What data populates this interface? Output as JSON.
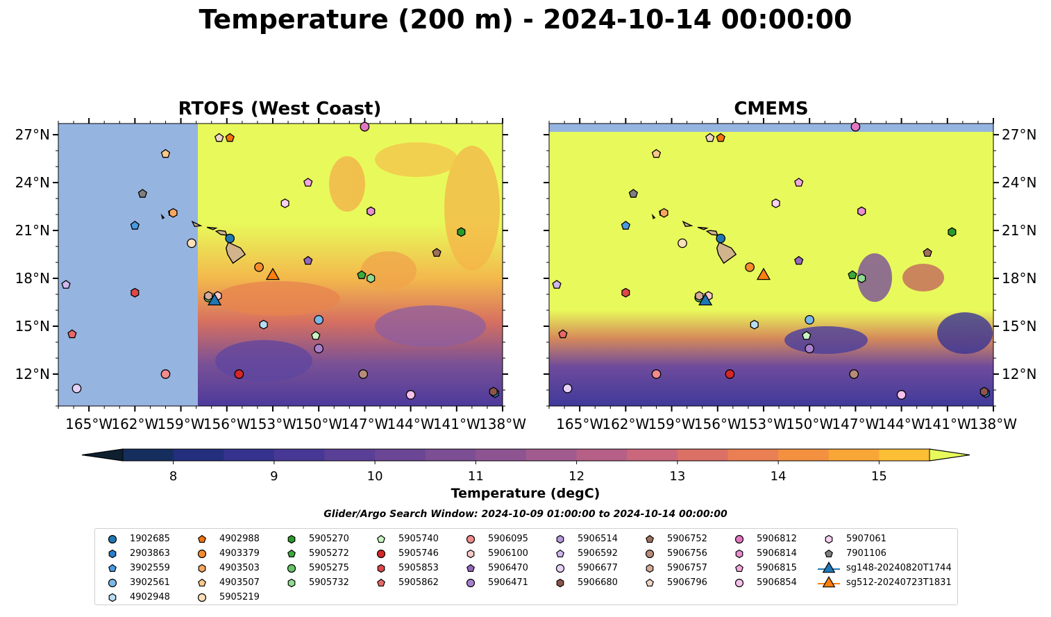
{
  "title": "Temperature (200 m) - 2024-10-14 00:00:00",
  "maps": [
    {
      "id": "rtofs",
      "title": "RTOFS (West Coast)",
      "land_mask_extent_lon": [
        -167,
        -158
      ]
    },
    {
      "id": "cmems",
      "title": "CMEMS"
    }
  ],
  "map_extent": {
    "lon": [
      -167,
      -138
    ],
    "lat": [
      10,
      27.7
    ]
  },
  "lon_ticks": [
    "165°W",
    "162°W",
    "159°W",
    "156°W",
    "153°W",
    "150°W",
    "147°W",
    "144°W",
    "141°W",
    "138°W"
  ],
  "lon_tick_values": [
    -165,
    -162,
    -159,
    -156,
    -153,
    -150,
    -147,
    -144,
    -141,
    -138
  ],
  "lat_ticks": [
    "27°N",
    "24°N",
    "21°N",
    "18°N",
    "15°N",
    "12°N"
  ],
  "lat_tick_values": [
    27,
    24,
    21,
    18,
    15,
    12
  ],
  "colorbar": {
    "title": "Temperature (degC)",
    "range": [
      7.5,
      15.5
    ],
    "step": 0.5,
    "ticks": [
      "8",
      "9",
      "10",
      "11",
      "12",
      "13",
      "14",
      "15"
    ],
    "tick_values": [
      8,
      9,
      10,
      11,
      12,
      13,
      14,
      15
    ],
    "extend": "both",
    "colormap": "thermal",
    "under_color": "#0e2030",
    "over_color": "#e8fa5b"
  },
  "search_window": "Glider/Argo Search Window: 2024-10-09 01:00:00 to 2024-10-14 00:00:00",
  "colors": {
    "land": "#d2b48c",
    "masked_ocean": "#96b4e0",
    "glider_sg148": "#1f77b4",
    "glider_sg512": "#ff7f0e"
  },
  "legend": [
    [
      {
        "label": "1902685",
        "marker": "circle",
        "color": "#1f77b4"
      },
      {
        "label": "2903863",
        "marker": "hexagon",
        "color": "#2d7ec8"
      },
      {
        "label": "3902559",
        "marker": "pentagon",
        "color": "#4a9ae0"
      },
      {
        "label": "3902561",
        "marker": "circle",
        "color": "#7ab8e8"
      },
      {
        "label": "4902948",
        "marker": "hexagon",
        "color": "#b8dcf4"
      }
    ],
    [
      {
        "label": "4902988",
        "marker": "pentagon",
        "color": "#f5730e"
      },
      {
        "label": "4903379",
        "marker": "circle",
        "color": "#f58c2e"
      },
      {
        "label": "4903503",
        "marker": "hexagon",
        "color": "#f7a860"
      },
      {
        "label": "4903507",
        "marker": "pentagon",
        "color": "#fbc88a"
      },
      {
        "label": "5905219",
        "marker": "circle",
        "color": "#fde0b8"
      }
    ],
    [
      {
        "label": "5905270",
        "marker": "hexagon",
        "color": "#2a9a2a"
      },
      {
        "label": "5905272",
        "marker": "pentagon",
        "color": "#3aab3a"
      },
      {
        "label": "5905275",
        "marker": "circle",
        "color": "#66c466"
      },
      {
        "label": "5905732",
        "marker": "hexagon",
        "color": "#8fdc8f"
      },
      {
        "label": "",
        "marker": "none",
        "color": ""
      }
    ],
    [
      {
        "label": "5905740",
        "marker": "pentagon",
        "color": "#c8f5c0"
      },
      {
        "label": "5905746",
        "marker": "circle",
        "color": "#d62728"
      },
      {
        "label": "5905853",
        "marker": "hexagon",
        "color": "#e04848"
      },
      {
        "label": "5905862",
        "marker": "pentagon",
        "color": "#e86868"
      },
      {
        "label": "",
        "marker": "none",
        "color": ""
      }
    ],
    [
      {
        "label": "5906095",
        "marker": "circle",
        "color": "#f08c8c"
      },
      {
        "label": "5906100",
        "marker": "hexagon",
        "color": "#fac8c8"
      },
      {
        "label": "5906470",
        "marker": "pentagon",
        "color": "#9467bd"
      },
      {
        "label": "5906471",
        "marker": "circle",
        "color": "#a880cc"
      },
      {
        "label": "",
        "marker": "none",
        "color": ""
      }
    ],
    [
      {
        "label": "5906514",
        "marker": "hexagon",
        "color": "#b898dc"
      },
      {
        "label": "5906592",
        "marker": "pentagon",
        "color": "#d0b8ee"
      },
      {
        "label": "5906677",
        "marker": "circle",
        "color": "#e6d2f8"
      },
      {
        "label": "5906680",
        "marker": "hexagon",
        "color": "#8c564b"
      },
      {
        "label": "",
        "marker": "none",
        "color": ""
      }
    ],
    [
      {
        "label": "5906752",
        "marker": "pentagon",
        "color": "#a0705c"
      },
      {
        "label": "5906756",
        "marker": "circle",
        "color": "#b88c78"
      },
      {
        "label": "5906757",
        "marker": "hexagon",
        "color": "#d4ac98"
      },
      {
        "label": "5906796",
        "marker": "pentagon",
        "color": "#f0d4c4"
      },
      {
        "label": "",
        "marker": "none",
        "color": ""
      }
    ],
    [
      {
        "label": "5906812",
        "marker": "circle",
        "color": "#e377c2"
      },
      {
        "label": "5906814",
        "marker": "hexagon",
        "color": "#ea8ed0"
      },
      {
        "label": "5906815",
        "marker": "pentagon",
        "color": "#f2a8dc"
      },
      {
        "label": "5906854",
        "marker": "circle",
        "color": "#f8c0ec"
      },
      {
        "label": "",
        "marker": "none",
        "color": ""
      }
    ],
    [
      {
        "label": "5907061",
        "marker": "hexagon",
        "color": "#fad2f0"
      },
      {
        "label": "7901106",
        "marker": "pentagon",
        "color": "#7f7f7f"
      },
      {
        "label": "sg148-20240820T1744",
        "marker": "triangle-line",
        "color": "#1f77b4"
      },
      {
        "label": "sg512-20240723T1831",
        "marker": "triangle-line",
        "color": "#ff7f0e"
      },
      {
        "label": "",
        "marker": "none",
        "color": ""
      }
    ]
  ],
  "observations": [
    {
      "id": "1902685",
      "lon": -155.8,
      "lat": 20.5
    },
    {
      "id": "2903863",
      "lon": -138.5,
      "lat": 10.8
    },
    {
      "id": "3902559",
      "lon": -162.0,
      "lat": 21.3
    },
    {
      "id": "3902561",
      "lon": -150.0,
      "lat": 15.4
    },
    {
      "id": "4902948",
      "lon": -153.6,
      "lat": 15.1
    },
    {
      "id": "4902988",
      "lon": -155.8,
      "lat": 26.8
    },
    {
      "id": "4903379",
      "lon": -153.9,
      "lat": 18.7
    },
    {
      "id": "4903503",
      "lon": -159.5,
      "lat": 22.1
    },
    {
      "id": "4903507",
      "lon": -160.0,
      "lat": 25.8
    },
    {
      "id": "5905219",
      "lon": -158.3,
      "lat": 20.2
    },
    {
      "id": "5905270",
      "lon": -140.7,
      "lat": 20.9
    },
    {
      "id": "5905272",
      "lon": -147.2,
      "lat": 18.2
    },
    {
      "id": "5905275",
      "lon": -157.2,
      "lat": 16.8
    },
    {
      "id": "5905732",
      "lon": -146.6,
      "lat": 18.0
    },
    {
      "id": "5905740",
      "lon": -150.2,
      "lat": 14.4
    },
    {
      "id": "5905746",
      "lon": -155.2,
      "lat": 12.0
    },
    {
      "id": "5905853",
      "lon": -162.0,
      "lat": 17.1
    },
    {
      "id": "5905862",
      "lon": -166.1,
      "lat": 14.5
    },
    {
      "id": "5906095",
      "lon": -160.0,
      "lat": 12.0
    },
    {
      "id": "5906100",
      "lon": -156.6,
      "lat": 16.9
    },
    {
      "id": "5906470",
      "lon": -150.7,
      "lat": 19.1
    },
    {
      "id": "5906471",
      "lon": -150.0,
      "lat": 13.6
    },
    {
      "id": "5906514",
      "lon": -146.6,
      "lat": 22.2
    },
    {
      "id": "5906592",
      "lon": -166.5,
      "lat": 17.6
    },
    {
      "id": "5906677",
      "lon": -165.8,
      "lat": 11.1
    },
    {
      "id": "5906680",
      "lon": -138.6,
      "lat": 10.9
    },
    {
      "id": "5906752",
      "lon": -142.3,
      "lat": 19.6
    },
    {
      "id": "5906756",
      "lon": -147.1,
      "lat": 12.0
    },
    {
      "id": "5906757",
      "lon": -157.2,
      "lat": 16.9
    },
    {
      "id": "5906796",
      "lon": -156.5,
      "lat": 26.8
    },
    {
      "id": "5906812",
      "lon": -147.0,
      "lat": 27.5
    },
    {
      "id": "5906814",
      "lon": -146.6,
      "lat": 22.2
    },
    {
      "id": "5906815",
      "lon": -150.7,
      "lat": 24.0
    },
    {
      "id": "5906854",
      "lon": -144.0,
      "lat": 10.7
    },
    {
      "id": "5907061",
      "lon": -152.2,
      "lat": 22.7
    },
    {
      "id": "7901106",
      "lon": -161.5,
      "lat": 23.3
    },
    {
      "id": "sg148-20240820T1744",
      "lon": -156.8,
      "lat": 16.6
    },
    {
      "id": "sg512-20240723T1831",
      "lon": -153.0,
      "lat": 18.2
    }
  ]
}
